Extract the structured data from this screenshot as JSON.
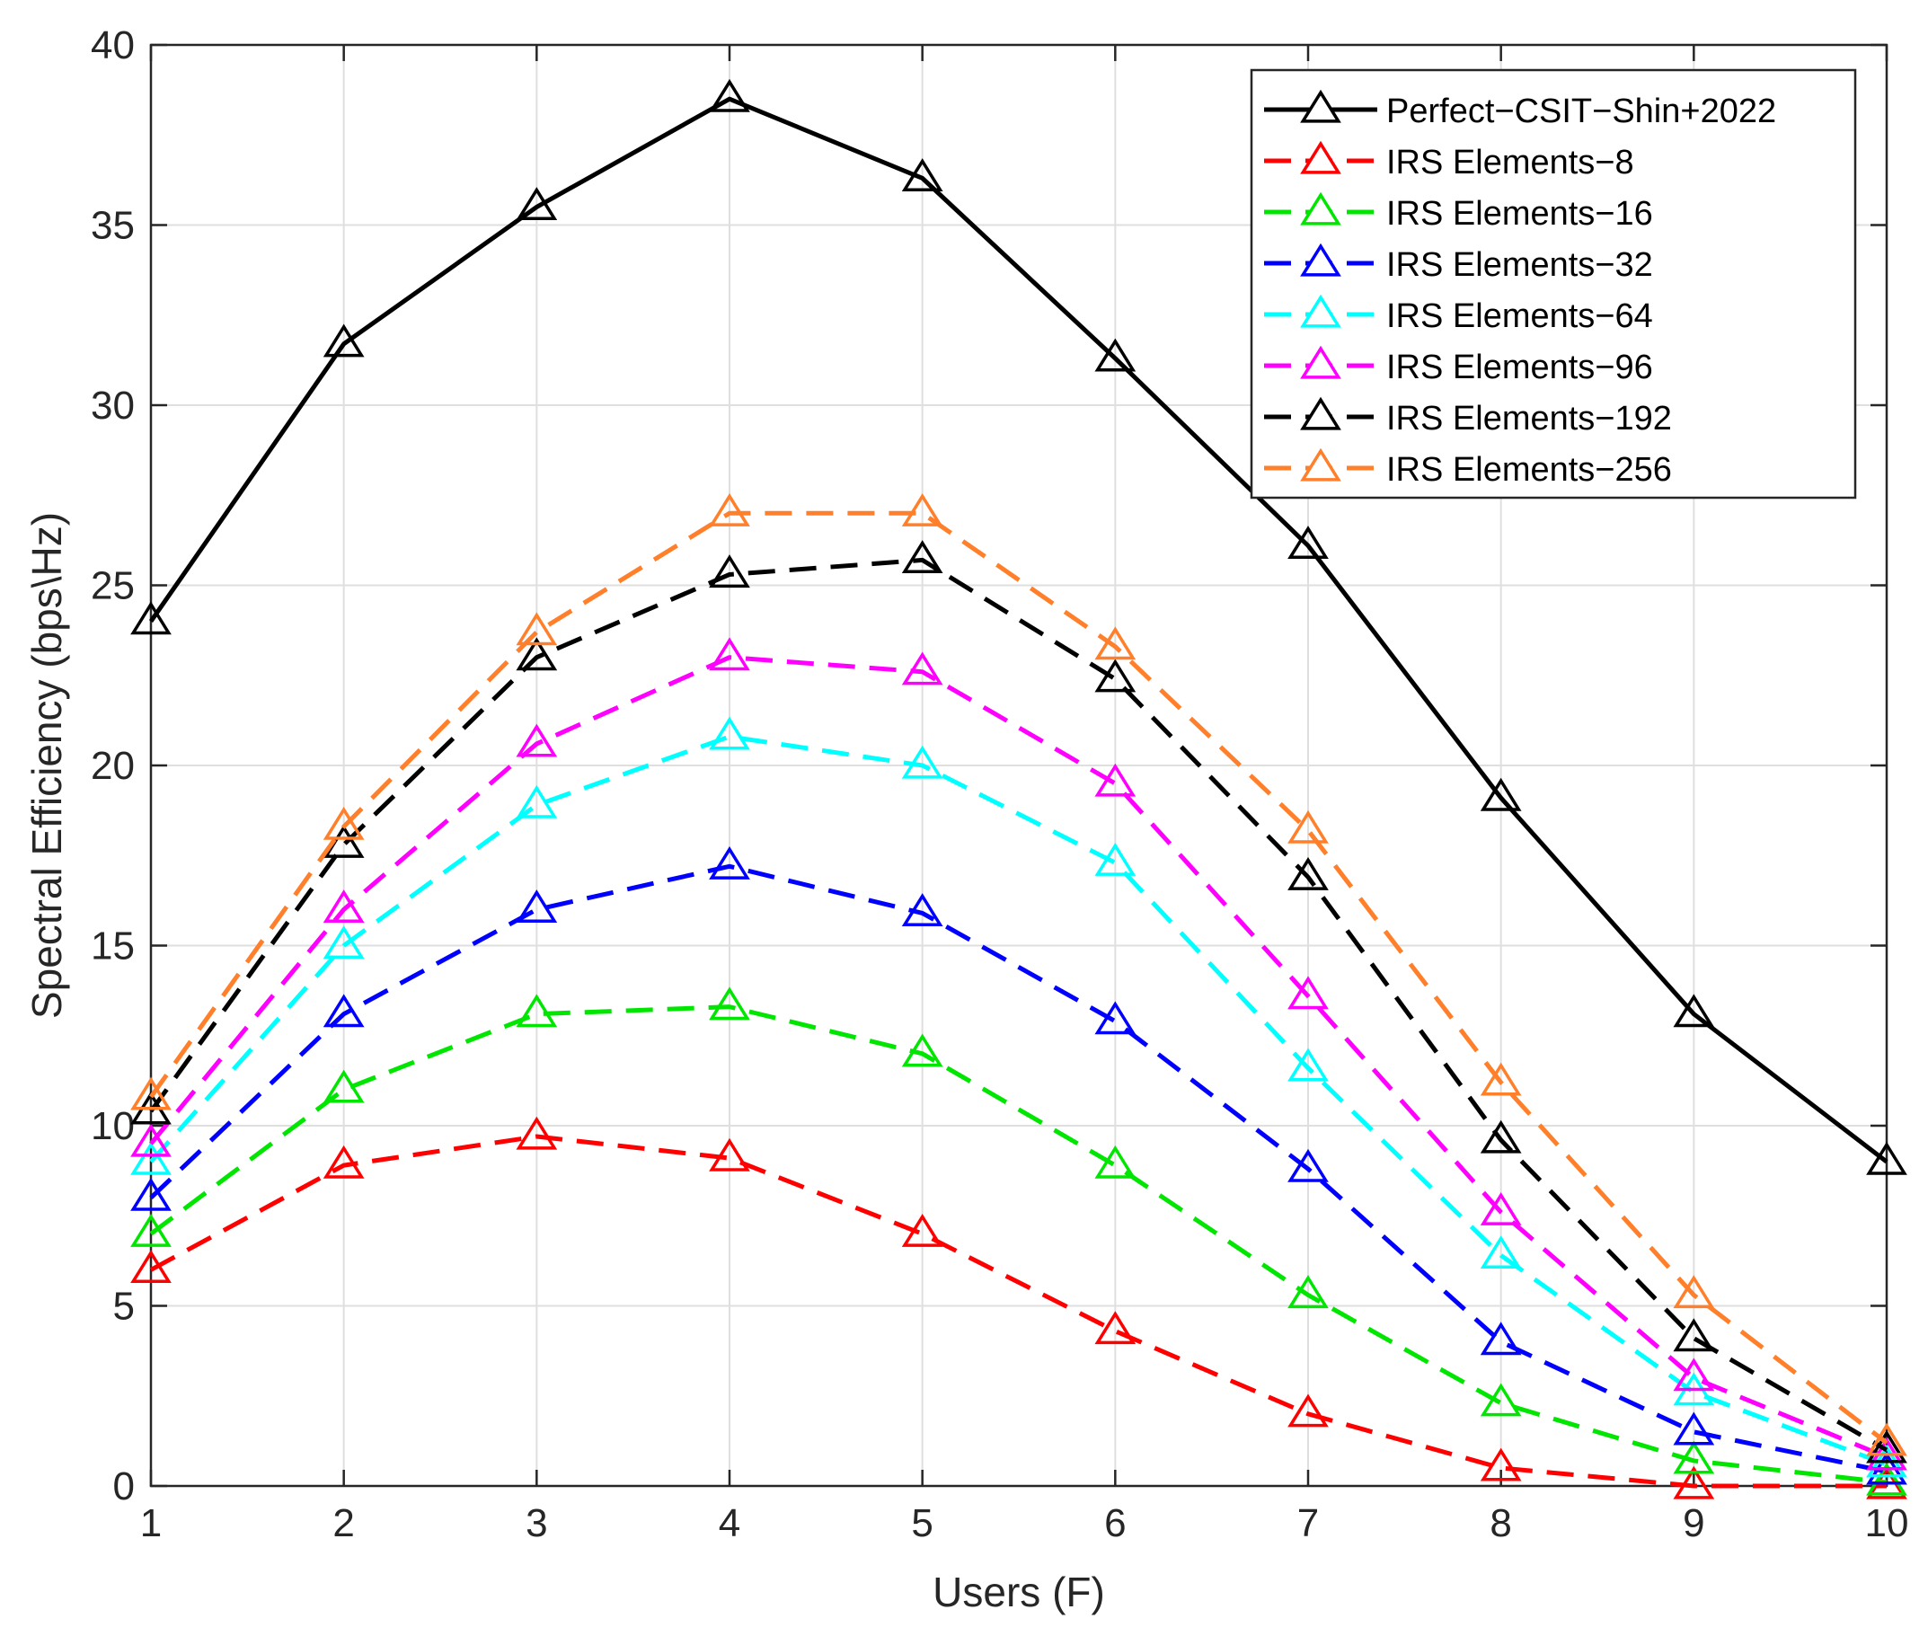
{
  "chart_data": {
    "type": "line",
    "title": "",
    "xlabel": "Users (F)",
    "ylabel": "Spectral Efficiency (bps\\Hz)",
    "xlim": [
      1,
      10
    ],
    "ylim": [
      0,
      40
    ],
    "xticks": [
      1,
      2,
      3,
      4,
      5,
      6,
      7,
      8,
      9,
      10
    ],
    "yticks": [
      0,
      5,
      10,
      15,
      20,
      25,
      30,
      35,
      40
    ],
    "grid": true,
    "legend_position": "top-right",
    "x": [
      1,
      2,
      3,
      4,
      5,
      6,
      7,
      8,
      9,
      10
    ],
    "series": [
      {
        "name": "Perfect−CSIT−Shin+2022",
        "color": "#000000",
        "dashed": false,
        "values": [
          24.0,
          31.7,
          35.5,
          38.5,
          36.3,
          31.3,
          26.1,
          19.1,
          13.1,
          9.0
        ]
      },
      {
        "name": "IRS Elements−8",
        "color": "#ff0000",
        "dashed": true,
        "values": [
          6.0,
          8.9,
          9.7,
          9.1,
          7.0,
          4.3,
          2.0,
          0.5,
          0.0,
          0.0
        ]
      },
      {
        "name": "IRS Elements−16",
        "color": "#00e600",
        "dashed": true,
        "values": [
          7.0,
          11.0,
          13.1,
          13.3,
          12.0,
          8.9,
          5.3,
          2.3,
          0.7,
          0.1
        ]
      },
      {
        "name": "IRS Elements−32",
        "color": "#0000ff",
        "dashed": true,
        "values": [
          8.0,
          13.1,
          16.0,
          17.2,
          15.9,
          12.9,
          8.8,
          4.0,
          1.5,
          0.4
        ]
      },
      {
        "name": "IRS Elements−64",
        "color": "#00ffff",
        "dashed": true,
        "values": [
          9.0,
          15.0,
          18.9,
          20.8,
          20.0,
          17.3,
          11.6,
          6.4,
          2.6,
          0.6
        ]
      },
      {
        "name": "IRS Elements−96",
        "color": "#ff00ff",
        "dashed": true,
        "values": [
          9.5,
          16.0,
          20.6,
          23.0,
          22.6,
          19.5,
          13.6,
          7.6,
          3.0,
          0.8
        ]
      },
      {
        "name": "IRS Elements−192",
        "color": "#000000",
        "dashed": true,
        "values": [
          10.4,
          17.8,
          23.0,
          25.3,
          25.7,
          22.4,
          16.9,
          9.6,
          4.1,
          1.0
        ]
      },
      {
        "name": "IRS Elements−256",
        "color": "#ff7f2a",
        "dashed": true,
        "values": [
          10.8,
          18.3,
          23.7,
          27.0,
          27.0,
          23.3,
          18.2,
          11.2,
          5.3,
          1.2
        ]
      }
    ]
  }
}
